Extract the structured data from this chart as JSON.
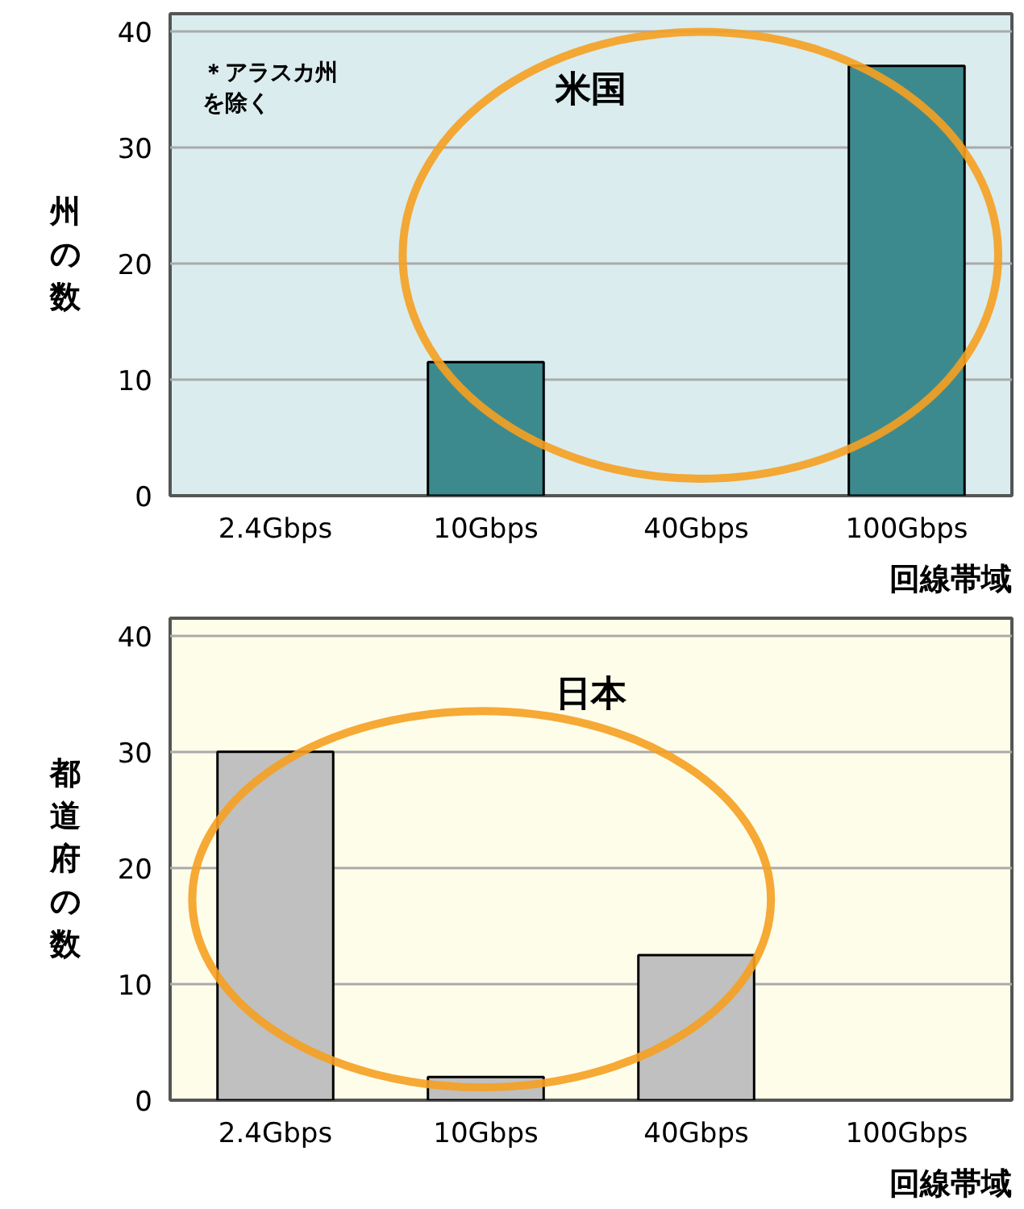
{
  "chart_data": [
    {
      "type": "bar",
      "title": "米国",
      "ylabel": "州の数",
      "xlabel": "回線帯域",
      "categories": [
        "2.4Gbps",
        "10Gbps",
        "40Gbps",
        "100Gbps"
      ],
      "values": [
        0,
        11.5,
        0,
        37
      ],
      "color": "#3d8a8e",
      "ylim": [
        0,
        41.5
      ],
      "yticks": [
        0,
        10,
        20,
        30,
        40
      ],
      "grid": "y",
      "annotations": [
        "＊アラスカ州を除く"
      ]
    },
    {
      "type": "bar",
      "title": "日本",
      "ylabel": "都道府の数",
      "xlabel": "回線帯域",
      "categories": [
        "2.4Gbps",
        "10Gbps",
        "40Gbps",
        "100Gbps"
      ],
      "values": [
        30,
        2,
        12.5,
        0
      ],
      "color": "#c0c0c0",
      "ylim": [
        0,
        41.5
      ],
      "yticks": [
        0,
        10,
        20,
        30,
        40
      ],
      "grid": "y"
    }
  ]
}
